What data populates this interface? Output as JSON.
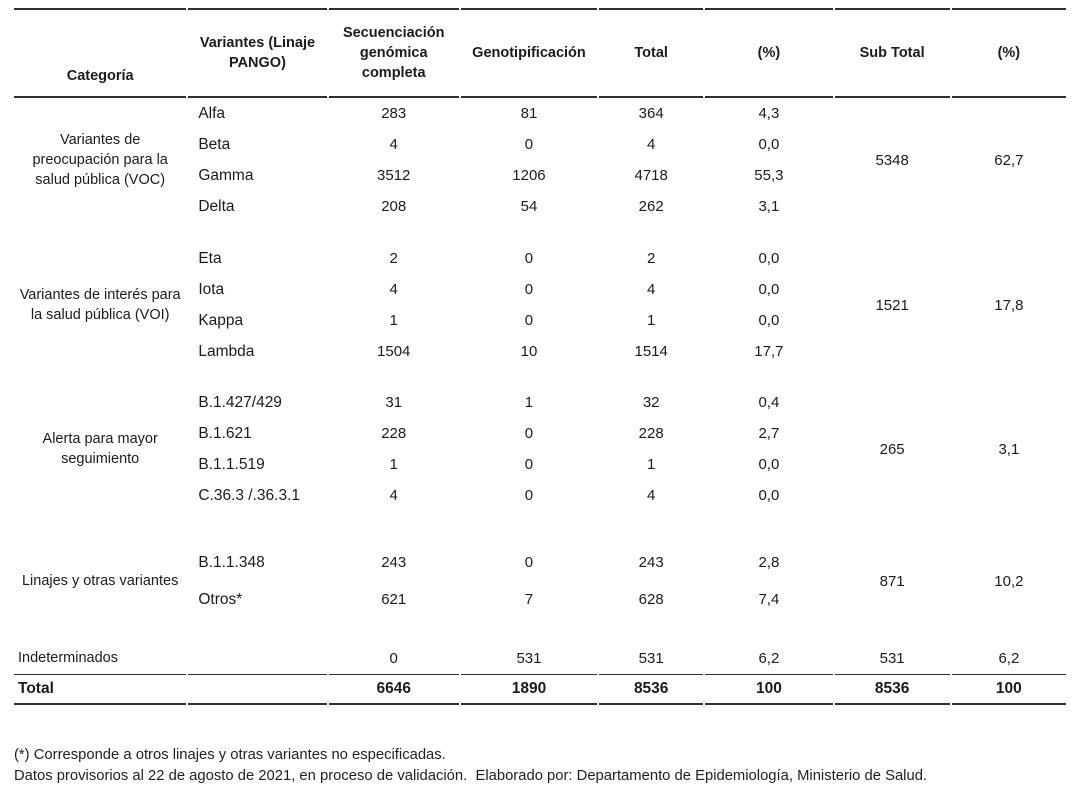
{
  "table": {
    "headers": [
      "Categoría",
      "Variantes (Linaje PANGO)",
      "Secuenciación genómica completa",
      "Genotipificación",
      "Total",
      "(%)",
      "Sub Total",
      "(%)"
    ],
    "groups": [
      {
        "category": "Variantes de preocupación para la salud pública (VOC)",
        "rows": [
          {
            "variant": "Alfa",
            "seq": "283",
            "geno": "81",
            "total": "364",
            "pct": "4,3"
          },
          {
            "variant": "Beta",
            "seq": "4",
            "geno": "0",
            "total": "4",
            "pct": "0,0"
          },
          {
            "variant": "Gamma",
            "seq": "3512",
            "geno": "1206",
            "total": "4718",
            "pct": "55,3"
          },
          {
            "variant": "Delta",
            "seq": "208",
            "geno": "54",
            "total": "262",
            "pct": "3,1"
          }
        ],
        "subtotal": "5348",
        "subtotal_pct": "62,7"
      },
      {
        "category": "Variantes de interés para la salud pública (VOI)",
        "rows": [
          {
            "variant": "Eta",
            "seq": "2",
            "geno": "0",
            "total": "2",
            "pct": "0,0"
          },
          {
            "variant": "Iota",
            "seq": "4",
            "geno": "0",
            "total": "4",
            "pct": "0,0"
          },
          {
            "variant": "Kappa",
            "seq": "1",
            "geno": "0",
            "total": "1",
            "pct": "0,0"
          },
          {
            "variant": "Lambda",
            "seq": "1504",
            "geno": "10",
            "total": "1514",
            "pct": "17,7"
          }
        ],
        "subtotal": "1521",
        "subtotal_pct": "17,8"
      },
      {
        "category": "Alerta para mayor seguimiento",
        "rows": [
          {
            "variant": "B.1.427/429",
            "seq": "31",
            "geno": "1",
            "total": "32",
            "pct": "0,4"
          },
          {
            "variant": "B.1.621",
            "seq": "228",
            "geno": "0",
            "total": "228",
            "pct": "2,7"
          },
          {
            "variant": "B.1.1.519",
            "seq": "1",
            "geno": "0",
            "total": "1",
            "pct": "0,0"
          },
          {
            "variant": "C.36.3 /.36.3.1",
            "seq": "4",
            "geno": "0",
            "total": "4",
            "pct": "0,0"
          }
        ],
        "subtotal": "265",
        "subtotal_pct": "3,1"
      },
      {
        "category": "Linajes y otras variantes",
        "rows": [
          {
            "variant": "B.1.1.348",
            "seq": "243",
            "geno": "0",
            "total": "243",
            "pct": "2,8"
          },
          {
            "variant": "Otros*",
            "seq": "621",
            "geno": "7",
            "total": "628",
            "pct": "7,4"
          }
        ],
        "subtotal": "871",
        "subtotal_pct": "10,2"
      }
    ],
    "indeterminate_row": {
      "category": "Indeterminados",
      "seq": "0",
      "geno": "531",
      "total": "531",
      "pct": "6,2",
      "subtotal": "531",
      "subtotal_pct": "6,2"
    },
    "total_row": {
      "label": "Total",
      "seq": "6646",
      "geno": "1890",
      "total": "8536",
      "pct": "100",
      "subtotal": "8536",
      "subtotal_pct": "100"
    }
  },
  "footnotes": [
    "(*) Corresponde a otros linajes y otras variantes no especificadas.",
    "Datos provisorios al 22 de agosto de 2021, en proceso de validación.  Elaborado por: Departamento de Epidemiología, Ministerio de Salud."
  ]
}
